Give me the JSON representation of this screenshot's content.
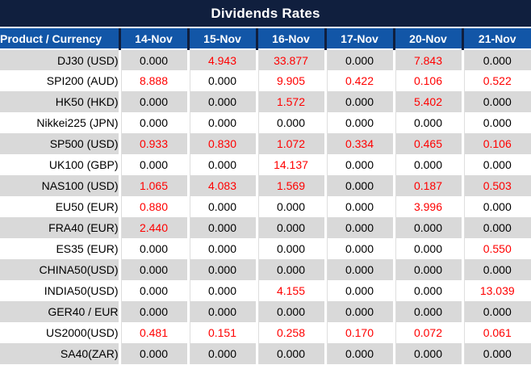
{
  "title": "Dividends Rates",
  "table": {
    "product_header": "Product / Currency",
    "date_headers": [
      "14-Nov",
      "15-Nov",
      "16-Nov",
      "17-Nov",
      "20-Nov",
      "21-Nov"
    ],
    "rows": [
      {
        "product": "DJ30 (USD)",
        "values": [
          "0.000",
          "4.943",
          "33.877",
          "0.000",
          "7.843",
          "0.000"
        ],
        "red": [
          false,
          true,
          true,
          false,
          true,
          false
        ]
      },
      {
        "product": "SPI200 (AUD)",
        "values": [
          "8.888",
          "0.000",
          "9.905",
          "0.422",
          "0.106",
          "0.522"
        ],
        "red": [
          true,
          false,
          true,
          true,
          true,
          true
        ]
      },
      {
        "product": "HK50 (HKD)",
        "values": [
          "0.000",
          "0.000",
          "1.572",
          "0.000",
          "5.402",
          "0.000"
        ],
        "red": [
          false,
          false,
          true,
          false,
          true,
          false
        ]
      },
      {
        "product": "Nikkei225 (JPN)",
        "values": [
          "0.000",
          "0.000",
          "0.000",
          "0.000",
          "0.000",
          "0.000"
        ],
        "red": [
          false,
          false,
          false,
          false,
          false,
          false
        ]
      },
      {
        "product": "SP500 (USD)",
        "values": [
          "0.933",
          "0.830",
          "1.072",
          "0.334",
          "0.465",
          "0.106"
        ],
        "red": [
          true,
          true,
          true,
          true,
          true,
          true
        ]
      },
      {
        "product": "UK100 (GBP)",
        "values": [
          "0.000",
          "0.000",
          "14.137",
          "0.000",
          "0.000",
          "0.000"
        ],
        "red": [
          false,
          false,
          true,
          false,
          false,
          false
        ]
      },
      {
        "product": "NAS100 (USD)",
        "values": [
          "1.065",
          "4.083",
          "1.569",
          "0.000",
          "0.187",
          "0.503"
        ],
        "red": [
          true,
          true,
          true,
          false,
          true,
          true
        ]
      },
      {
        "product": "EU50 (EUR)",
        "values": [
          "0.880",
          "0.000",
          "0.000",
          "0.000",
          "3.996",
          "0.000"
        ],
        "red": [
          true,
          false,
          false,
          false,
          true,
          false
        ]
      },
      {
        "product": "FRA40 (EUR)",
        "values": [
          "2.440",
          "0.000",
          "0.000",
          "0.000",
          "0.000",
          "0.000"
        ],
        "red": [
          true,
          false,
          false,
          false,
          false,
          false
        ]
      },
      {
        "product": "ES35 (EUR)",
        "values": [
          "0.000",
          "0.000",
          "0.000",
          "0.000",
          "0.000",
          "0.550"
        ],
        "red": [
          false,
          false,
          false,
          false,
          false,
          true
        ]
      },
      {
        "product": "CHINA50(USD)",
        "values": [
          "0.000",
          "0.000",
          "0.000",
          "0.000",
          "0.000",
          "0.000"
        ],
        "red": [
          false,
          false,
          false,
          false,
          false,
          false
        ]
      },
      {
        "product": "INDIA50(USD)",
        "values": [
          "0.000",
          "0.000",
          "4.155",
          "0.000",
          "0.000",
          "13.039"
        ],
        "red": [
          false,
          false,
          true,
          false,
          false,
          true
        ]
      },
      {
        "product": "GER40 / EUR",
        "values": [
          "0.000",
          "0.000",
          "0.000",
          "0.000",
          "0.000",
          "0.000"
        ],
        "red": [
          false,
          false,
          false,
          false,
          false,
          false
        ]
      },
      {
        "product": "US2000(USD)",
        "values": [
          "0.481",
          "0.151",
          "0.258",
          "0.170",
          "0.072",
          "0.061"
        ],
        "red": [
          true,
          true,
          true,
          true,
          true,
          true
        ]
      },
      {
        "product": "SA40(ZAR)",
        "values": [
          "0.000",
          "0.000",
          "0.000",
          "0.000",
          "0.000",
          "0.000"
        ],
        "red": [
          false,
          false,
          false,
          false,
          false,
          false
        ]
      }
    ]
  },
  "colors": {
    "title_bg": "#101f3e",
    "header_bg": "#1256a7",
    "header_text": "#ffffff",
    "row_alt_bg": "#d9d9d9",
    "row_bg": "#ffffff",
    "value_text": "#000000",
    "value_highlight": "#ff0000"
  }
}
